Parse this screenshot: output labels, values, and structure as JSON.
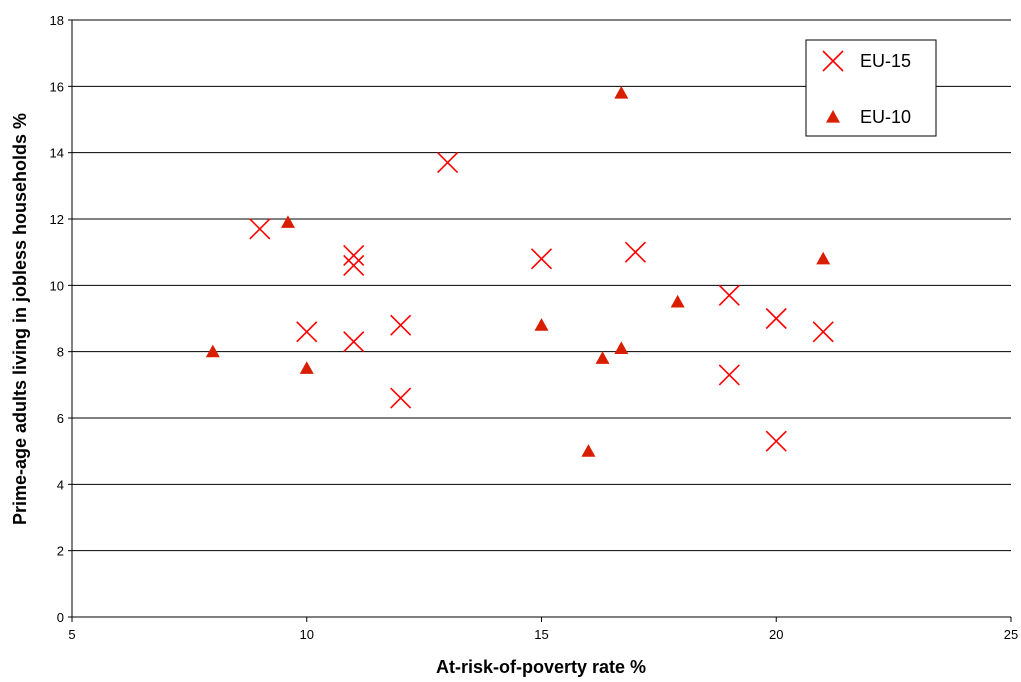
{
  "chart_data": {
    "type": "scatter",
    "title": "",
    "xlabel": "At-risk-of-poverty rate %",
    "ylabel": "Prime-age adults living in jobless households %",
    "xlim": [
      5,
      25
    ],
    "ylim": [
      0,
      18
    ],
    "xticks": [
      "5",
      "10",
      "15",
      "20",
      "25"
    ],
    "yticks": [
      "0",
      "2",
      "4",
      "6",
      "8",
      "10",
      "12",
      "14",
      "16",
      "18"
    ],
    "grid": "horizontal",
    "legend_position": "top-right",
    "series": [
      {
        "name": "EU-15",
        "marker": "x",
        "color": "#ff0000",
        "points": [
          [
            9,
            11.7
          ],
          [
            10,
            8.6
          ],
          [
            11,
            10.9
          ],
          [
            11,
            10.6
          ],
          [
            11,
            8.3
          ],
          [
            12,
            8.8
          ],
          [
            12,
            6.6
          ],
          [
            13,
            13.7
          ],
          [
            15,
            10.8
          ],
          [
            17,
            11.0
          ],
          [
            19,
            9.7
          ],
          [
            19,
            7.3
          ],
          [
            20,
            9.0
          ],
          [
            20,
            5.3
          ],
          [
            21,
            8.6
          ]
        ]
      },
      {
        "name": "EU-10",
        "marker": "triangle",
        "color": "#d91e00",
        "points": [
          [
            8,
            8.0
          ],
          [
            9.6,
            11.9
          ],
          [
            10,
            7.5
          ],
          [
            15,
            8.8
          ],
          [
            16,
            5.0
          ],
          [
            16.3,
            7.8
          ],
          [
            16.7,
            8.1
          ],
          [
            16.7,
            15.8
          ],
          [
            17.9,
            9.5
          ],
          [
            21,
            10.8
          ]
        ]
      }
    ]
  }
}
